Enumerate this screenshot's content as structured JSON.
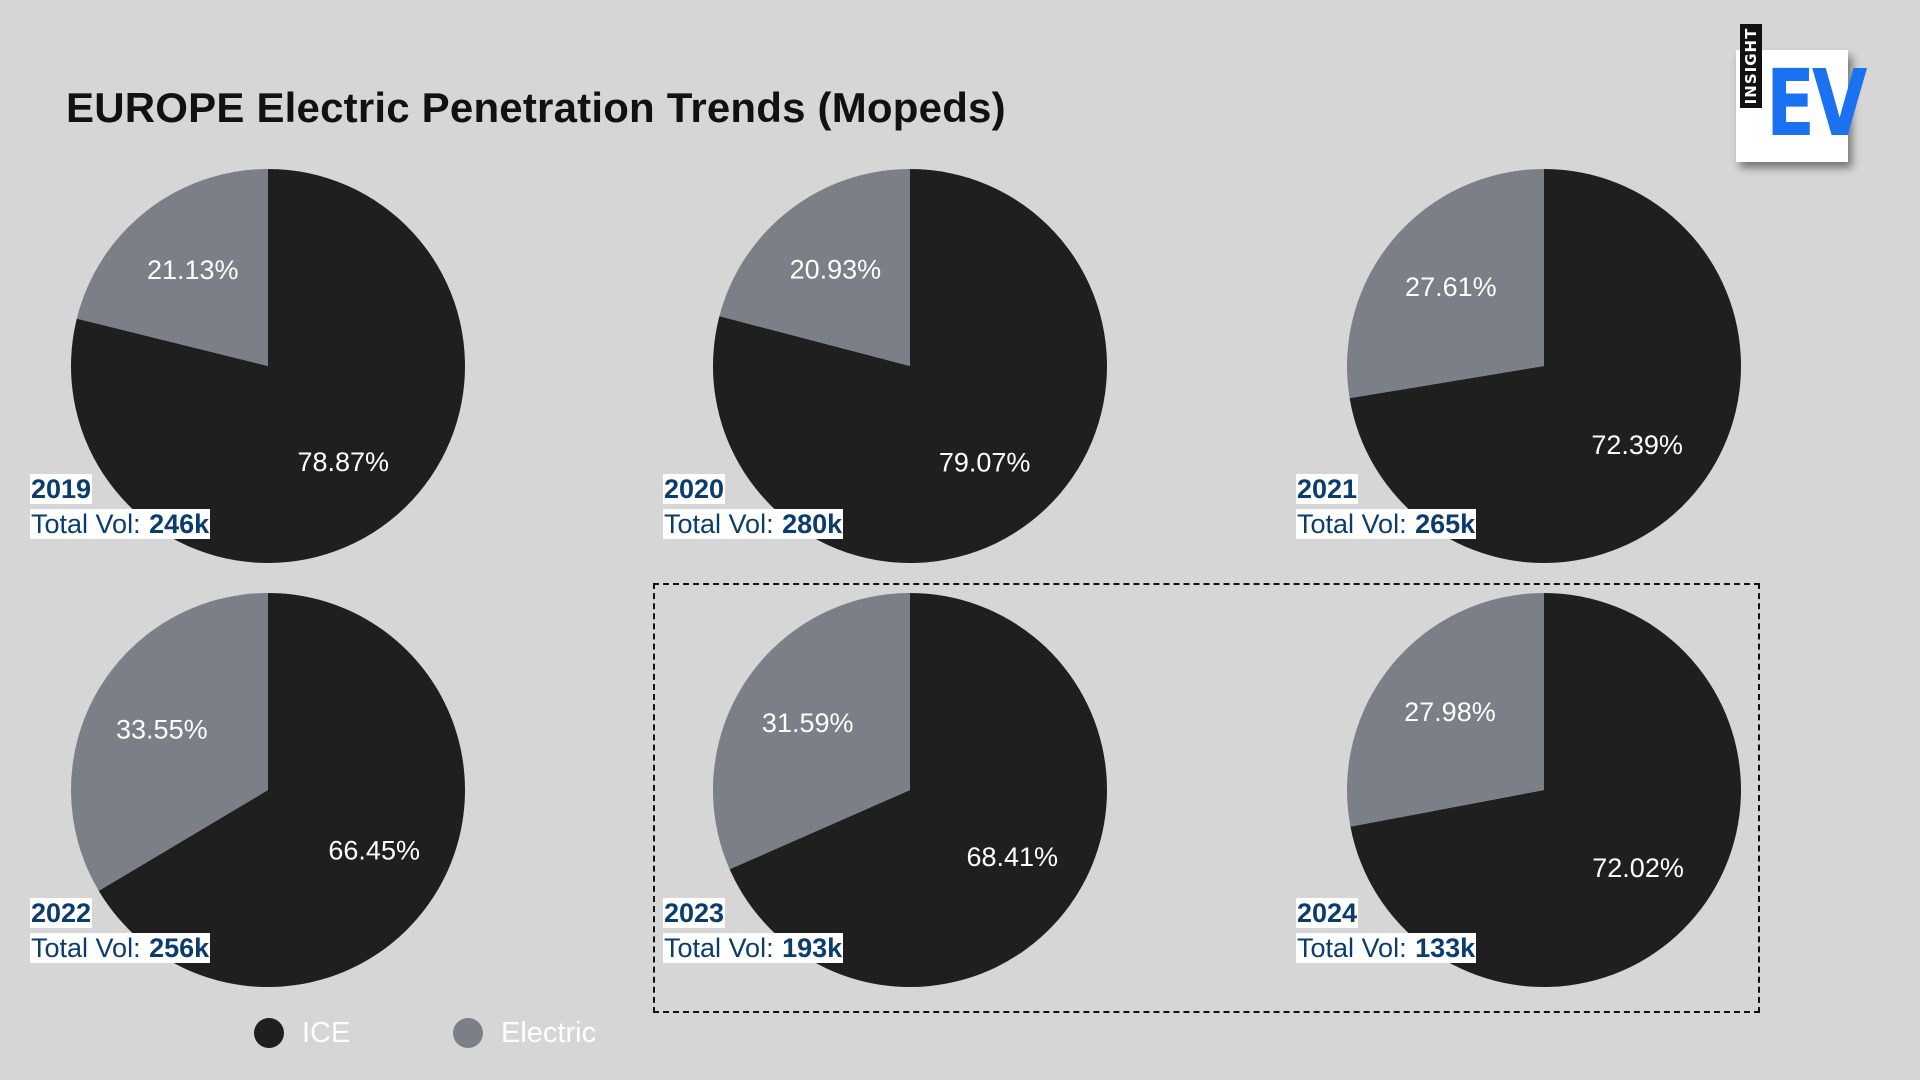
{
  "title": "EUROPE Electric Penetration Trends (Mopeds)",
  "logo": {
    "small_text": "INSIGHT",
    "big_text": "EV"
  },
  "colors": {
    "ice": "#1f1f1f",
    "electric": "#7a7f88",
    "background": "#d6d6d6",
    "label_text": "#0b3c6e",
    "logo_blue": "#1a72f0"
  },
  "legend": [
    {
      "label": "ICE",
      "color": "#1f1f1f"
    },
    {
      "label": "Electric",
      "color": "#7a7f88"
    }
  ],
  "chart_data": [
    {
      "type": "pie",
      "year": "2019",
      "vol_prefix": "Total Vol: ",
      "total_vol": "246k",
      "slices": [
        {
          "name": "ICE",
          "value": 78.87,
          "label": "78.87%"
        },
        {
          "name": "Electric",
          "value": 21.13,
          "label": "21.13%"
        }
      ]
    },
    {
      "type": "pie",
      "year": "2020",
      "vol_prefix": "Total Vol: ",
      "total_vol": "280k",
      "slices": [
        {
          "name": "ICE",
          "value": 79.07,
          "label": "79.07%"
        },
        {
          "name": "Electric",
          "value": 20.93,
          "label": "20.93%"
        }
      ]
    },
    {
      "type": "pie",
      "year": "2021",
      "vol_prefix": "Total Vol: ",
      "total_vol": "265k",
      "slices": [
        {
          "name": "ICE",
          "value": 72.39,
          "label": "72.39%"
        },
        {
          "name": "Electric",
          "value": 27.61,
          "label": "27.61%"
        }
      ]
    },
    {
      "type": "pie",
      "year": "2022",
      "vol_prefix": "Total Vol: ",
      "total_vol": "256k",
      "slices": [
        {
          "name": "ICE",
          "value": 66.45,
          "label": "66.45%"
        },
        {
          "name": "Electric",
          "value": 33.55,
          "label": "33.55%"
        }
      ]
    },
    {
      "type": "pie",
      "year": "2023",
      "vol_prefix": "Total Vol: ",
      "total_vol": "193k",
      "slices": [
        {
          "name": "ICE",
          "value": 68.41,
          "label": "68.41%"
        },
        {
          "name": "Electric",
          "value": 31.59,
          "label": "31.59%"
        }
      ]
    },
    {
      "type": "pie",
      "year": "2024",
      "vol_prefix": "Total Vol: ",
      "total_vol": "133k",
      "slices": [
        {
          "name": "ICE",
          "value": 72.02,
          "label": "72.02%"
        },
        {
          "name": "Electric",
          "value": 27.98,
          "label": "27.98%"
        }
      ]
    }
  ]
}
